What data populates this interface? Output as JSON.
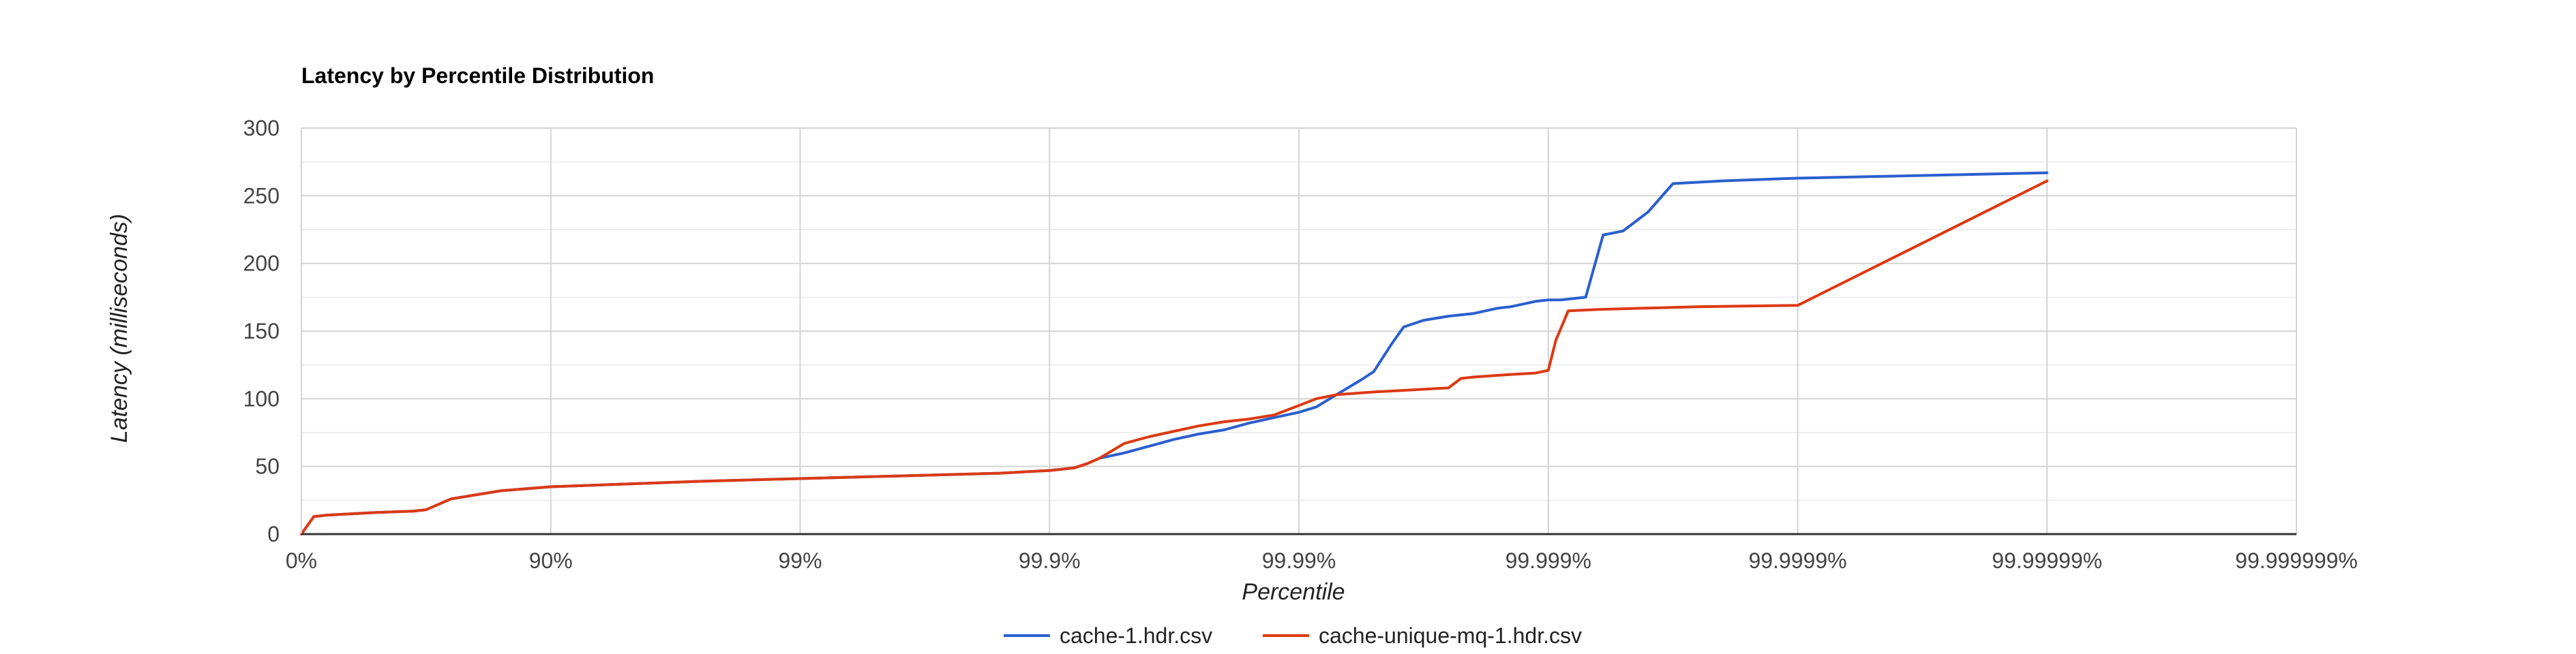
{
  "chart_data": {
    "type": "line",
    "title": "Latency by Percentile Distribution",
    "xlabel": "Percentile",
    "ylabel": "Latency (milliseconds)",
    "x_scale": "nines-log (position = number of nines after 0%)",
    "x_ticks": [
      "0%",
      "90%",
      "99%",
      "99.9%",
      "99.99%",
      "99.999%",
      "99.9999%",
      "99.99999%",
      "99.999999%"
    ],
    "xlim": [
      0,
      8
    ],
    "ylim": [
      0,
      300
    ],
    "y_ticks": [
      "0",
      "50",
      "100",
      "150",
      "200",
      "250",
      "300"
    ],
    "grid": true,
    "legend_position": "bottom",
    "series": [
      {
        "name": "cache-1.hdr.csv",
        "color": "#2a5fcd",
        "x": [
          0,
          0.05,
          0.1,
          0.2,
          0.3,
          0.45,
          0.5,
          0.55,
          0.6,
          0.7,
          0.8,
          1.0,
          1.3,
          1.6,
          2.0,
          2.4,
          2.8,
          3.0,
          3.1,
          3.15,
          3.2,
          3.3,
          3.4,
          3.5,
          3.6,
          3.7,
          3.8,
          3.9,
          4.0,
          4.07,
          4.15,
          4.25,
          4.3,
          4.37,
          4.42,
          4.5,
          4.6,
          4.7,
          4.8,
          4.85,
          4.95,
          5.0,
          5.05,
          5.15,
          5.22,
          5.3,
          5.4,
          5.5,
          5.7,
          6.0,
          7.0
        ],
        "y": [
          0,
          13,
          14,
          15,
          16,
          17,
          18,
          22,
          26,
          29,
          32,
          35,
          37,
          39,
          41,
          43,
          45,
          47,
          49,
          52,
          56,
          60,
          65,
          70,
          74,
          77,
          82,
          86,
          90,
          94,
          103,
          114,
          120,
          140,
          153,
          158,
          161,
          163,
          167,
          168,
          172,
          173,
          173,
          175,
          221,
          224,
          238,
          259,
          261,
          263,
          267
        ]
      },
      {
        "name": "cache-unique-mq-1.hdr.csv",
        "color": "#dc3912",
        "x": [
          0,
          0.05,
          0.1,
          0.2,
          0.3,
          0.45,
          0.5,
          0.55,
          0.6,
          0.7,
          0.8,
          1.0,
          1.3,
          1.6,
          2.0,
          2.4,
          2.8,
          3.0,
          3.1,
          3.15,
          3.2,
          3.3,
          3.4,
          3.5,
          3.6,
          3.7,
          3.8,
          3.9,
          4.0,
          4.07,
          4.15,
          4.3,
          4.5,
          4.6,
          4.65,
          4.7,
          4.85,
          4.95,
          5.0,
          5.03,
          5.08,
          5.2,
          5.4,
          5.6,
          6.0,
          7.0
        ],
        "y": [
          0,
          13,
          14,
          15,
          16,
          17,
          18,
          22,
          26,
          29,
          32,
          35,
          37,
          39,
          41,
          43,
          45,
          47,
          49,
          52,
          56,
          67,
          72,
          76,
          80,
          83,
          85,
          88,
          95,
          100,
          103,
          105,
          107,
          108,
          115,
          116,
          118,
          119,
          121,
          143,
          165,
          166,
          167,
          168,
          169,
          261
        ]
      }
    ]
  }
}
